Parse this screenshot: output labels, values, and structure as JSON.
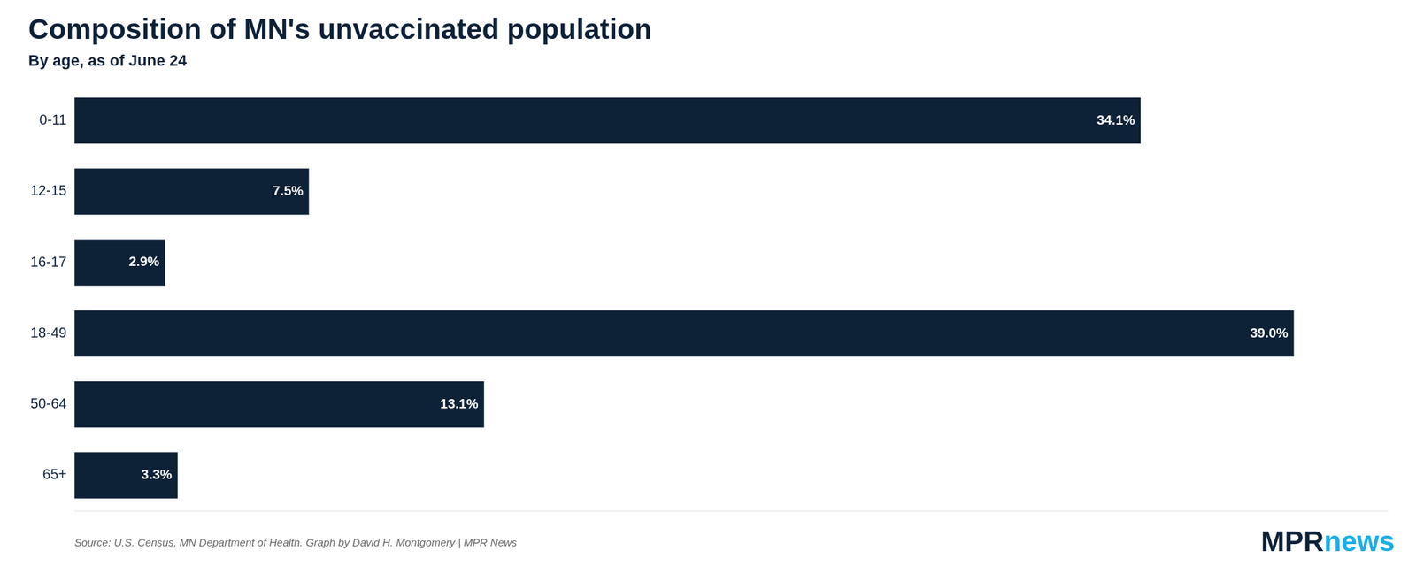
{
  "chart_data": {
    "type": "bar",
    "orientation": "horizontal",
    "title": "Composition of MN's unvaccinated population",
    "subtitle": "By age, as of June 24",
    "categories": [
      "0-11",
      "12-15",
      "16-17",
      "18-49",
      "50-64",
      "65+"
    ],
    "values": [
      34.1,
      7.5,
      2.9,
      39.0,
      13.1,
      3.3
    ],
    "value_labels": [
      "34.1%",
      "7.5%",
      "2.9%",
      "39.0%",
      "13.1%",
      "3.3%"
    ],
    "data_labels": true,
    "color": "#0d2137",
    "xlim": [
      0,
      42
    ],
    "grid": false,
    "tick_labels": "y",
    "annotations": [
      {
        "text": "Source: U.S. Census, MN Department of Health. Graph by David H. Montgomery | MPR News"
      },
      {
        "text": "MPR",
        "color": "#0d2137"
      },
      {
        "text": "news",
        "color": "#1aafe6"
      }
    ]
  }
}
